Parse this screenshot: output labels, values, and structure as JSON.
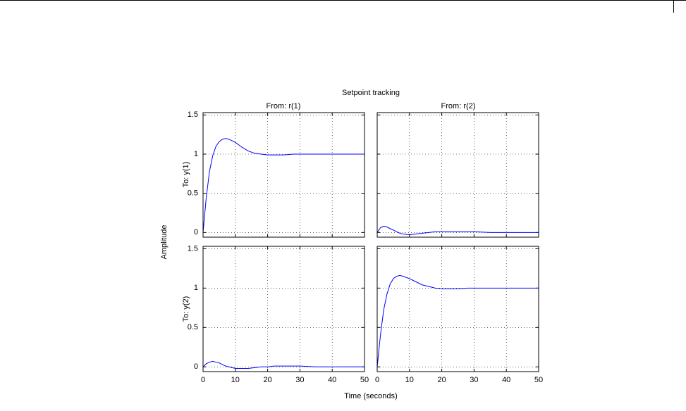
{
  "figure": {
    "title": "Setpoint tracking",
    "xlabel": "Time (seconds)",
    "ylabel": "Amplitude",
    "column_titles": [
      "From: r(1)",
      "From: r(2)"
    ],
    "row_titles": [
      "To: y(1)",
      "To: y(2)"
    ]
  },
  "chart_data": [
    {
      "type": "line",
      "x": [
        0,
        1,
        2,
        3,
        4,
        5,
        6,
        7,
        8,
        10,
        12,
        14,
        16,
        18,
        20,
        22,
        25,
        28,
        30,
        35,
        40,
        45,
        50
      ],
      "series": [
        {
          "color": "#0000ff",
          "values": [
            0,
            0.45,
            0.78,
            0.98,
            1.1,
            1.16,
            1.19,
            1.2,
            1.19,
            1.15,
            1.09,
            1.04,
            1.01,
            1.0,
            0.99,
            0.99,
            0.99,
            1.0,
            1.0,
            1.0,
            1.0,
            1.0,
            1.0
          ]
        }
      ],
      "xlim": [
        0,
        50
      ],
      "ylim": [
        -0.06,
        1.53
      ],
      "xticks": [
        0,
        10,
        20,
        30,
        40,
        50
      ],
      "yticks": [
        0,
        0.5,
        1,
        1.5
      ],
      "grid": true
    },
    {
      "type": "line",
      "x": [
        0,
        1,
        2,
        3,
        4,
        5,
        6,
        7,
        8,
        10,
        12,
        14,
        16,
        18,
        20,
        22,
        25,
        28,
        30,
        35,
        40,
        45,
        50
      ],
      "series": [
        {
          "color": "#0000ff",
          "values": [
            0,
            0.06,
            0.08,
            0.07,
            0.05,
            0.03,
            0.01,
            -0.01,
            -0.02,
            -0.03,
            -0.02,
            -0.01,
            0,
            0.01,
            0.01,
            0.01,
            0.01,
            0.01,
            0.01,
            0,
            0,
            0,
            0
          ]
        }
      ],
      "xlim": [
        0,
        50
      ],
      "ylim": [
        -0.06,
        1.53
      ],
      "xticks": [
        0,
        10,
        20,
        30,
        40,
        50
      ],
      "yticks": [
        0,
        0.5,
        1,
        1.5
      ],
      "grid": true
    },
    {
      "type": "line",
      "x": [
        0,
        1,
        2,
        3,
        4,
        5,
        6,
        7,
        8,
        10,
        12,
        14,
        16,
        18,
        20,
        22,
        25,
        28,
        30,
        35,
        40,
        45,
        50
      ],
      "series": [
        {
          "color": "#0000ff",
          "values": [
            0,
            0.04,
            0.06,
            0.07,
            0.06,
            0.05,
            0.03,
            0.01,
            0,
            -0.02,
            -0.02,
            -0.02,
            -0.01,
            0,
            0,
            0.01,
            0.01,
            0.01,
            0.01,
            0,
            0,
            0,
            0
          ]
        }
      ],
      "xlim": [
        0,
        50
      ],
      "ylim": [
        -0.06,
        1.53
      ],
      "xticks": [
        0,
        10,
        20,
        30,
        40,
        50
      ],
      "yticks": [
        0,
        0.5,
        1,
        1.5
      ],
      "grid": true
    },
    {
      "type": "line",
      "x": [
        0,
        1,
        2,
        3,
        4,
        5,
        6,
        7,
        8,
        10,
        12,
        14,
        16,
        18,
        20,
        22,
        25,
        28,
        30,
        35,
        40,
        45,
        50
      ],
      "series": [
        {
          "color": "#0000ff",
          "values": [
            0,
            0.4,
            0.72,
            0.92,
            1.05,
            1.12,
            1.15,
            1.16,
            1.15,
            1.12,
            1.08,
            1.04,
            1.02,
            1.0,
            0.99,
            0.99,
            0.99,
            1.0,
            1.0,
            1.0,
            1.0,
            1.0,
            1.0
          ]
        }
      ],
      "xlim": [
        0,
        50
      ],
      "ylim": [
        -0.06,
        1.53
      ],
      "xticks": [
        0,
        10,
        20,
        30,
        40,
        50
      ],
      "yticks": [
        0,
        0.5,
        1,
        1.5
      ],
      "grid": true
    }
  ]
}
